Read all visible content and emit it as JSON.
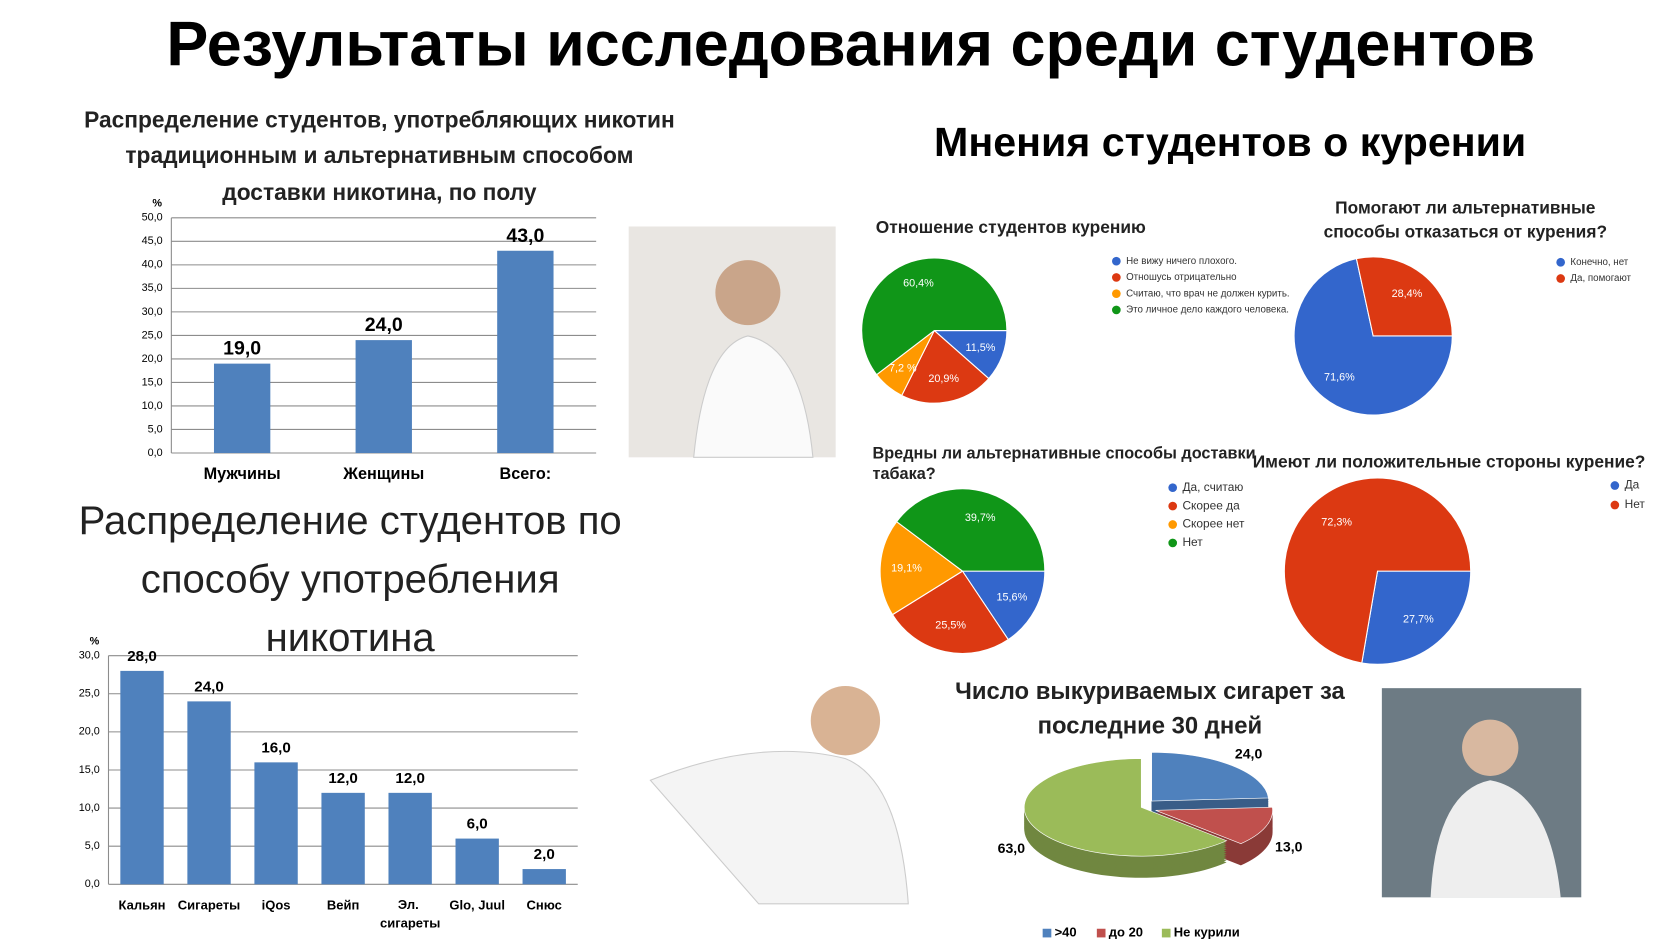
{
  "title": "Результаты исследования среди студентов",
  "chart_data": [
    {
      "type": "bar",
      "title": [
        "Распределение студентов, употребляющих никотин",
        "традиционным и альтернативным способом",
        "доставки никотина, по полу"
      ],
      "ylabel": "%",
      "categories": [
        "Мужчины",
        "Женщины",
        "Всего:"
      ],
      "values": [
        19,
        24,
        43
      ],
      "value_labels": [
        "19,0",
        "24,0",
        "43,0"
      ],
      "color": "#4f81bd",
      "ylim": [
        0,
        50
      ],
      "yticks": [
        {
          "value": 0,
          "label": "0,0"
        },
        {
          "value": 5,
          "label": "5,0"
        },
        {
          "value": 10,
          "label": "10,0"
        },
        {
          "value": 15,
          "label": "15,0"
        },
        {
          "value": 20,
          "label": "20,0"
        },
        {
          "value": 25,
          "label": "25,0"
        },
        {
          "value": 30,
          "label": "30,0"
        },
        {
          "value": 35,
          "label": "35,0"
        },
        {
          "value": 40,
          "label": "40,0"
        },
        {
          "value": 45,
          "label": "45,0"
        },
        {
          "value": 50,
          "label": "50,0"
        }
      ],
      "grid": true
    },
    {
      "type": "bar",
      "title": [
        "Распределение студентов по",
        "способу употребления",
        "никотина"
      ],
      "ylabel": "%",
      "categories": [
        "Кальян",
        "Сигареты",
        "iQos",
        "Вейп",
        "Эл. сигареты",
        "Glo, Juul",
        "Снюс"
      ],
      "values": [
        28,
        24,
        16,
        12,
        12,
        6,
        2
      ],
      "value_labels": [
        "28,0",
        "24,0",
        "16,0",
        "12,0",
        "12,0",
        "6,0",
        "2,0"
      ],
      "color": "#4f81bd",
      "ylim": [
        0,
        30
      ],
      "yticks": [
        {
          "value": 0,
          "label": "0,0"
        },
        {
          "value": 5,
          "label": "5,0"
        },
        {
          "value": 10,
          "label": "10,0"
        },
        {
          "value": 15,
          "label": "15,0"
        },
        {
          "value": 20,
          "label": "20,0"
        },
        {
          "value": 25,
          "label": "25,0"
        },
        {
          "value": 30,
          "label": "30,0"
        }
      ],
      "grid": true
    },
    {
      "type": "pie",
      "heading": "Мнения студентов о курении",
      "title": [
        "Отношение студентов курению"
      ],
      "categories": [
        "Не вижу ничего плохого.",
        "Отношусь отрицательно",
        "Считаю, что врач не должен курить.",
        "Это личное дело каждого человека."
      ],
      "values": [
        11.5,
        20.9,
        7.2,
        60.4
      ],
      "value_labels": [
        "11,5%",
        "20,9%",
        "7,2 %",
        "60,4%"
      ],
      "colors": [
        "#3366cc",
        "#dc3912",
        "#ff9900",
        "#109618"
      ]
    },
    {
      "type": "pie",
      "title": [
        "Помогают ли альтернативные",
        "способы отказаться от курения?"
      ],
      "categories": [
        "Конечно, нет",
        "Да, помогают"
      ],
      "values": [
        71.6,
        28.4
      ],
      "value_labels": [
        "71,6%",
        "28,4%"
      ],
      "colors": [
        "#3366cc",
        "#dc3912"
      ]
    },
    {
      "type": "pie",
      "title": [
        "Вредны ли альтернативные способы доставки",
        "табака?"
      ],
      "categories": [
        "Да, считаю",
        "Скорее да",
        "Скорее нет",
        "Нет"
      ],
      "values": [
        15.6,
        25.5,
        19.1,
        39.7
      ],
      "value_labels": [
        "15,6%",
        "25,5%",
        "19,1%",
        "39,7%"
      ],
      "colors": [
        "#3366cc",
        "#dc3912",
        "#ff9900",
        "#109618"
      ]
    },
    {
      "type": "pie",
      "title": [
        "Имеют ли положительные стороны курение?"
      ],
      "categories": [
        "Да",
        "Нет"
      ],
      "values": [
        27.7,
        72.3
      ],
      "value_labels": [
        "27,7%",
        "72,3%"
      ],
      "colors": [
        "#3366cc",
        "#dc3912"
      ]
    },
    {
      "type": "pie3d",
      "title": [
        "Число выкуриваемых сигарет за",
        "последние 30 дней"
      ],
      "categories": [
        ">40",
        "до 20",
        "Не курили"
      ],
      "values": [
        24,
        13,
        63
      ],
      "value_labels": [
        "24,0",
        "13,0",
        "63,0"
      ],
      "colors": [
        "#4f81bd",
        "#c0504d",
        "#9bbb59"
      ]
    }
  ]
}
